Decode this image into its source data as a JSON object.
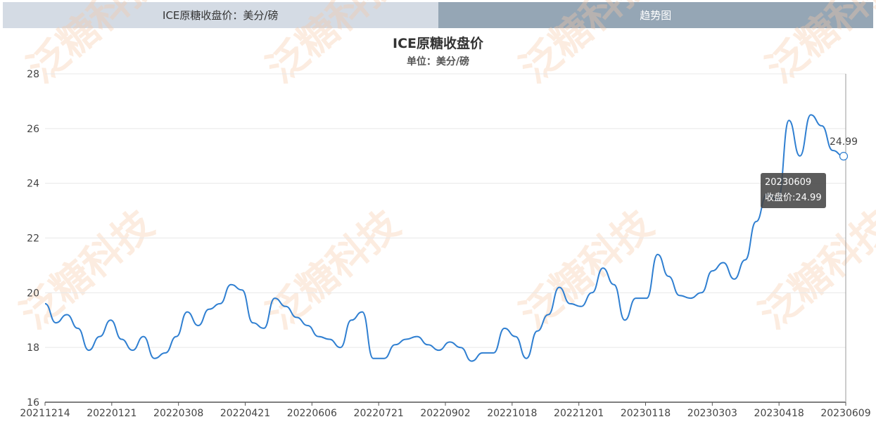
{
  "tabs": {
    "left": "ICE原糖收盘价：美分/磅",
    "right": "趋势图"
  },
  "colors": {
    "line": "#2f7fd1",
    "axis": "#666666",
    "grid": "#e8e8e8"
  },
  "watermark": "泛糖科技",
  "tooltip": {
    "date": "20230609",
    "text": "收盘价:24.99"
  },
  "chart_data": {
    "type": "line",
    "title": "ICE原糖收盘价",
    "subtitle": "单位：美分/磅",
    "xlabel": "",
    "ylabel": "",
    "ylim": [
      16,
      28
    ],
    "yticks": [
      "16",
      "18",
      "20",
      "22",
      "24",
      "26",
      "28"
    ],
    "xticks": [
      "20211214",
      "20220121",
      "20220308",
      "20220421",
      "20220606",
      "20220721",
      "20220902",
      "20221018",
      "20221201",
      "20230118",
      "20230303",
      "20230418",
      "20230609"
    ],
    "grid": true,
    "last_label": "24.99",
    "series": [
      {
        "name": "收盘价",
        "dates": [
          "20211214",
          "20211221",
          "20211228",
          "20220104",
          "20220111",
          "20220118",
          "20220121",
          "20220128",
          "20220204",
          "20220211",
          "20220218",
          "20220225",
          "20220308",
          "20220315",
          "20220322",
          "20220329",
          "20220405",
          "20220412",
          "20220421",
          "20220428",
          "20220505",
          "20220512",
          "20220519",
          "20220526",
          "20220606",
          "20220613",
          "20220620",
          "20220627",
          "20220705",
          "20220712",
          "20220721",
          "20220728",
          "20220804",
          "20220811",
          "20220818",
          "20220825",
          "20220902",
          "20220909",
          "20220916",
          "20220923",
          "20220930",
          "20221007",
          "20221018",
          "20221025",
          "20221101",
          "20221108",
          "20221115",
          "20221122",
          "20221201",
          "20221208",
          "20221215",
          "20221222",
          "20221229",
          "20230106",
          "20230118",
          "20230125",
          "20230201",
          "20230208",
          "20230215",
          "20230222",
          "20230303",
          "20230310",
          "20230317",
          "20230324",
          "20230331",
          "20230410",
          "20230418",
          "20230425",
          "20230502",
          "20230509",
          "20230516",
          "20230523",
          "20230531",
          "20230609"
        ],
        "values": [
          19.6,
          18.9,
          19.2,
          18.7,
          17.9,
          18.4,
          19.0,
          18.3,
          17.9,
          18.4,
          17.6,
          17.8,
          18.4,
          19.3,
          18.8,
          19.4,
          19.6,
          20.3,
          20.1,
          18.9,
          18.7,
          19.8,
          19.5,
          19.1,
          18.8,
          18.4,
          18.3,
          18.0,
          19.0,
          19.3,
          17.6,
          17.6,
          18.1,
          18.3,
          18.4,
          18.1,
          17.9,
          18.2,
          18.0,
          17.5,
          17.8,
          17.8,
          18.7,
          18.4,
          17.6,
          18.6,
          19.2,
          20.2,
          19.6,
          19.5,
          20.0,
          20.9,
          20.3,
          19.0,
          19.8,
          19.8,
          21.4,
          20.6,
          19.9,
          19.8,
          20.0,
          20.8,
          21.1,
          20.5,
          21.2,
          22.6,
          23.6,
          23.4,
          26.3,
          25.0,
          26.5,
          26.1,
          25.2,
          24.99
        ]
      }
    ]
  }
}
